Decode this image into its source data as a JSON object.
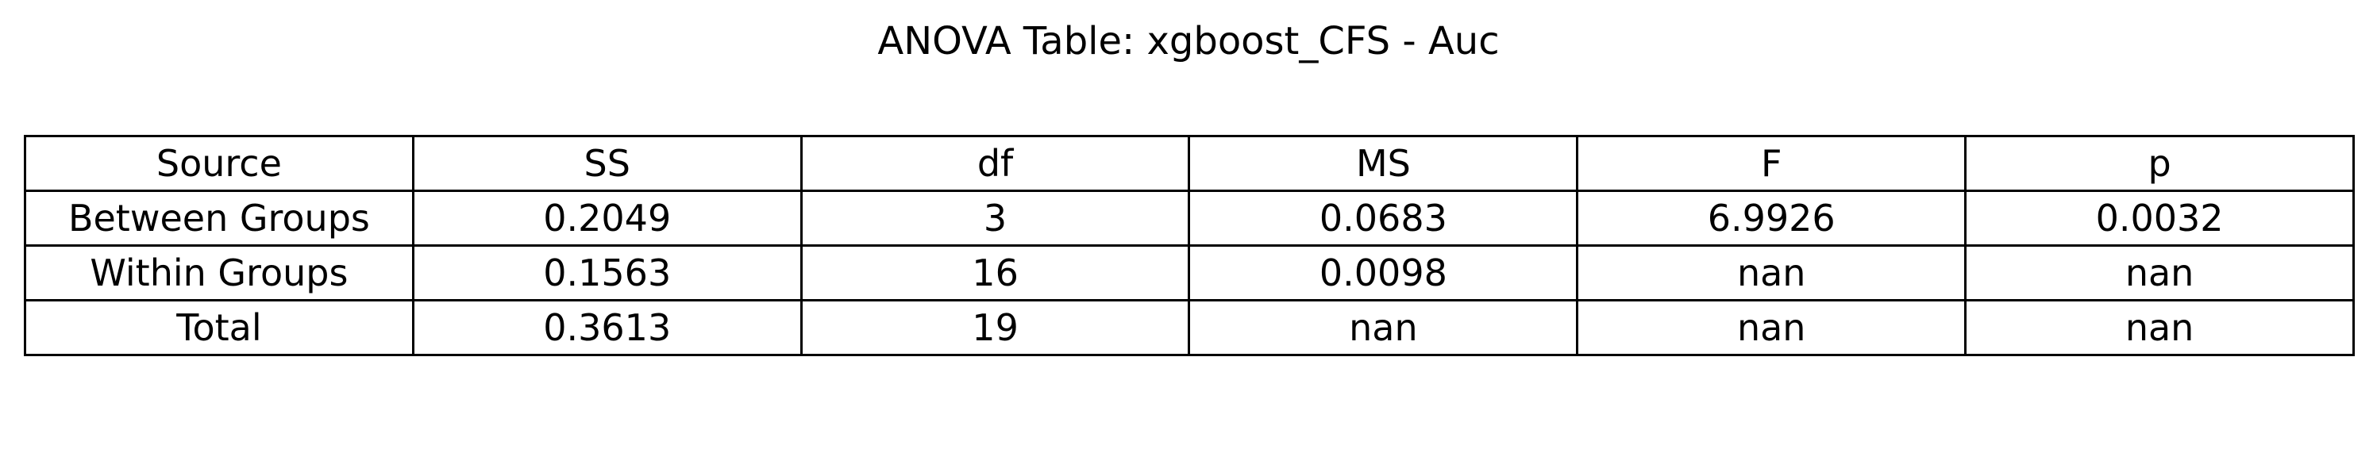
{
  "chart_data": {
    "type": "table",
    "title": "ANOVA Table: xgboost_CFS - Auc",
    "columns": [
      "Source",
      "SS",
      "df",
      "MS",
      "F",
      "p"
    ],
    "rows": [
      [
        "Between Groups",
        "0.2049",
        "3",
        "0.0683",
        "6.9926",
        "0.0032"
      ],
      [
        "Within Groups",
        "0.1563",
        "16",
        "0.0098",
        "nan",
        "nan"
      ],
      [
        "Total",
        "0.3613",
        "19",
        "nan",
        "nan",
        "nan"
      ]
    ]
  }
}
